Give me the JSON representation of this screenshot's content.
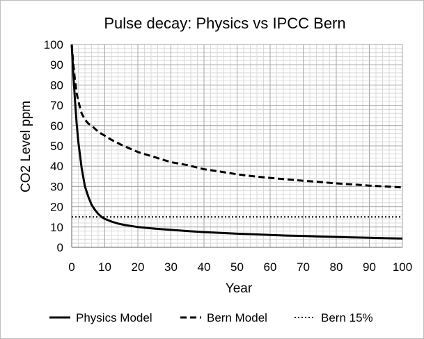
{
  "chart_data": {
    "type": "line",
    "title": "Pulse decay: Physics vs IPCC Bern",
    "xlabel": "Year",
    "ylabel": "CO2 Level ppm",
    "xlim": [
      0,
      100
    ],
    "ylim": [
      0,
      100
    ],
    "x_ticks": [
      "0",
      "10",
      "20",
      "30",
      "40",
      "50",
      "60",
      "70",
      "80",
      "90",
      "100"
    ],
    "y_ticks": [
      "0",
      "10",
      "20",
      "30",
      "40",
      "50",
      "60",
      "70",
      "80",
      "90",
      "100"
    ],
    "grid": true,
    "legend_position": "bottom",
    "series": [
      {
        "name": "Physics Model",
        "style": "solid",
        "color": "#000000",
        "x": [
          0,
          0.5,
          1,
          1.5,
          2,
          3,
          4,
          5,
          6,
          7,
          8,
          9,
          10,
          12,
          14,
          16,
          18,
          20,
          25,
          30,
          35,
          40,
          45,
          50,
          55,
          60,
          65,
          70,
          75,
          80,
          85,
          90,
          95,
          100
        ],
        "values": [
          100,
          85,
          72,
          61,
          52,
          39,
          30,
          25,
          21,
          18.5,
          16.5,
          15,
          14,
          12.7,
          11.7,
          11,
          10.5,
          10,
          9.2,
          8.6,
          8,
          7.5,
          7.1,
          6.7,
          6.4,
          6.1,
          5.8,
          5.6,
          5.3,
          5.1,
          4.9,
          4.7,
          4.5,
          4.3
        ]
      },
      {
        "name": "Bern Model",
        "style": "dashed",
        "color": "#000000",
        "x": [
          0,
          0.5,
          1,
          1.5,
          2,
          3,
          4,
          5,
          6,
          8,
          10,
          12,
          15,
          20,
          25,
          30,
          35,
          40,
          45,
          50,
          55,
          60,
          65,
          70,
          75,
          80,
          85,
          90,
          95,
          100
        ],
        "values": [
          100,
          90,
          82,
          76,
          72,
          66,
          63,
          61,
          60,
          57,
          55,
          53,
          50.5,
          47,
          44.5,
          42,
          40.5,
          38.5,
          37.3,
          36,
          35,
          34.2,
          33.5,
          32.8,
          32.2,
          31.5,
          31,
          30.4,
          30,
          29.5
        ]
      },
      {
        "name": "Bern 15%",
        "style": "dotted",
        "color": "#000000",
        "x": [
          0,
          100
        ],
        "values": [
          15,
          15
        ]
      }
    ]
  }
}
